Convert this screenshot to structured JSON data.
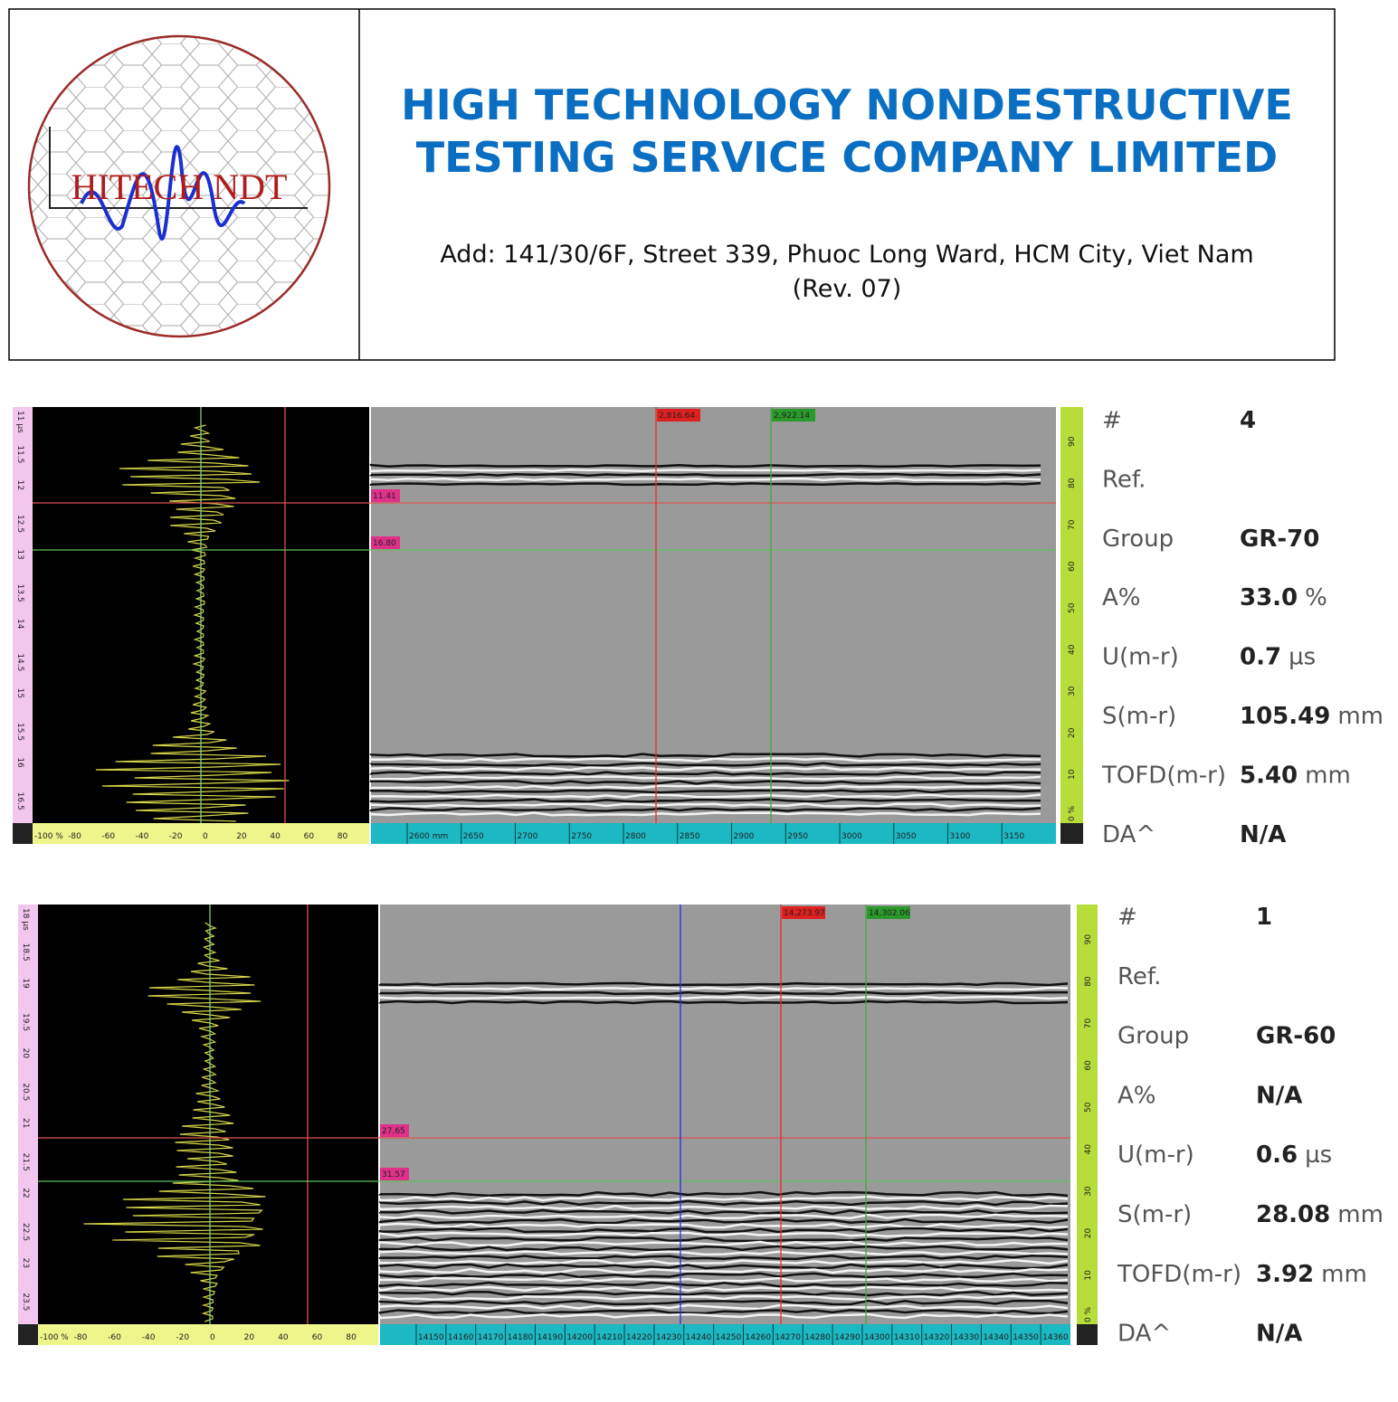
{
  "header": {
    "logo_text": "HITECH NDT",
    "company_line1": "HIGH TECHNOLOGY NONDESTRUCTIVE",
    "company_line2": "TESTING SERVICE COMPANY LIMITED",
    "address": "Add: 141/30/6F, Street 339, Phuoc Long Ward, HCM City, Viet Nam",
    "revision": "(Rev. 07)"
  },
  "scans": [
    {
      "cursors": {
        "ref_position": "2,816.64",
        "meas_position": "2,922.14",
        "ref_depth": "11.41",
        "meas_depth": "16.80"
      },
      "time_axis": [
        "11 µs",
        "11.5",
        "12",
        "12.5",
        "13",
        "13.5",
        "14",
        "14.5",
        "15",
        "15.5",
        "16",
        "16.5"
      ],
      "amplitude_axis": [
        "-100 %",
        "-80",
        "-60",
        "-40",
        "-20",
        "0",
        "20",
        "40",
        "60",
        "80"
      ],
      "scan_axis": [
        "2600 mm",
        "2650",
        "2700",
        "2750",
        "2800",
        "2850",
        "2900",
        "2950",
        "3000",
        "3050",
        "3100",
        "3150"
      ],
      "depth_axis": [
        "0 %",
        "10",
        "20",
        "30",
        "40",
        "50",
        "60",
        "70",
        "80",
        "90"
      ],
      "table": [
        {
          "label": "#",
          "value": "4"
        },
        {
          "label": "Ref."
        },
        {
          "label": "Group",
          "value": "GR-70"
        },
        {
          "label": "A%",
          "value": "33.0",
          "unit": "%"
        },
        {
          "label": "U(m-r)",
          "value": "0.7",
          "unit": "µs"
        },
        {
          "label": "S(m-r)",
          "value": "105.49",
          "unit": "mm"
        },
        {
          "label": "TOFD(m-r)",
          "value": "5.40",
          "unit": "mm"
        },
        {
          "label": "DA^",
          "value": "N/A"
        }
      ]
    },
    {
      "cursors": {
        "ref_position": "14,273.97",
        "meas_position": "14,302.06",
        "ref_depth": "27.65",
        "meas_depth": "31.57"
      },
      "time_axis": [
        "18 µs",
        "18.5",
        "19",
        "19.5",
        "20",
        "20.5",
        "21",
        "21.5",
        "22",
        "22.5",
        "23",
        "23.5"
      ],
      "amplitude_axis": [
        "-100 %",
        "-80",
        "-60",
        "-40",
        "-20",
        "0",
        "20",
        "40",
        "60",
        "80"
      ],
      "scan_axis": [
        "14150",
        "14160",
        "14170",
        "14180",
        "14190",
        "14200",
        "14210",
        "14220",
        "14230",
        "14240",
        "14250",
        "14260",
        "14270",
        "14280",
        "14290",
        "14300",
        "14310",
        "14320",
        "14330",
        "14340",
        "14350",
        "14360"
      ],
      "depth_axis": [
        "0 %",
        "10",
        "20",
        "30",
        "40",
        "50",
        "60",
        "70",
        "80",
        "90"
      ],
      "table": [
        {
          "label": "#",
          "value": "1"
        },
        {
          "label": "Ref."
        },
        {
          "label": "Group",
          "value": "GR-60"
        },
        {
          "label": "A%",
          "value": "N/A"
        },
        {
          "label": "U(m-r)",
          "value": "0.6",
          "unit": "µs"
        },
        {
          "label": "S(m-r)",
          "value": "28.08",
          "unit": "mm"
        },
        {
          "label": "TOFD(m-r)",
          "value": "3.92",
          "unit": "mm"
        },
        {
          "label": "DA^",
          "value": "N/A"
        }
      ]
    }
  ]
}
